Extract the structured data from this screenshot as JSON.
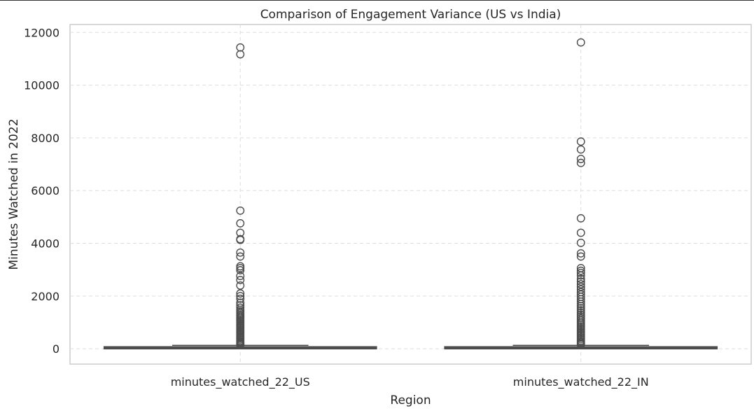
{
  "chart_data": {
    "type": "box",
    "title": "Comparison of Engagement Variance (US vs India)",
    "xlabel": "Region",
    "ylabel": "Minutes Watched in 2022",
    "ylim": [
      -580,
      12300
    ],
    "yticks": [
      0,
      2000,
      4000,
      6000,
      8000,
      10000,
      12000
    ],
    "grid": true,
    "categories": [
      "minutes_watched_22_US",
      "minutes_watched_22_IN"
    ],
    "boxes": [
      {
        "name": "minutes_watched_22_US",
        "q1": 0,
        "median": 5,
        "q3": 40,
        "whisker_low": 0,
        "whisker_high": 130,
        "outliers": [
          11430,
          11170,
          5240,
          4760,
          4400,
          4160,
          4130,
          3650,
          3500,
          3130,
          3060,
          2980,
          2760,
          2610,
          2400,
          2100,
          2000,
          1900,
          1750,
          1650,
          1560,
          1480,
          1420,
          1360,
          1300,
          1250,
          1200,
          1150,
          1100,
          1050,
          1000,
          950,
          900,
          850,
          800,
          750,
          700,
          650,
          600,
          550,
          500,
          450,
          400,
          350,
          300,
          260,
          220,
          190,
          160
        ]
      },
      {
        "name": "minutes_watched_22_IN",
        "q1": 0,
        "median": 5,
        "q3": 40,
        "whisker_low": 0,
        "whisker_high": 130,
        "outliers": [
          11620,
          7860,
          7560,
          7200,
          7050,
          4950,
          4400,
          4020,
          3620,
          3500,
          3060,
          2960,
          2880,
          2780,
          2650,
          2550,
          2450,
          2350,
          2250,
          2150,
          2060,
          1970,
          1880,
          1790,
          1700,
          1620,
          1540,
          1460,
          1380,
          1300,
          1230,
          1160,
          1090,
          1020,
          960,
          900,
          840,
          780,
          720,
          660,
          600,
          540,
          480,
          420,
          360,
          300,
          250,
          210,
          170
        ]
      }
    ],
    "colors": {
      "box": "#4c4c4c",
      "grid": "#dddddd",
      "axes": "#cccccc",
      "outlier": "#4c4c4c"
    }
  }
}
